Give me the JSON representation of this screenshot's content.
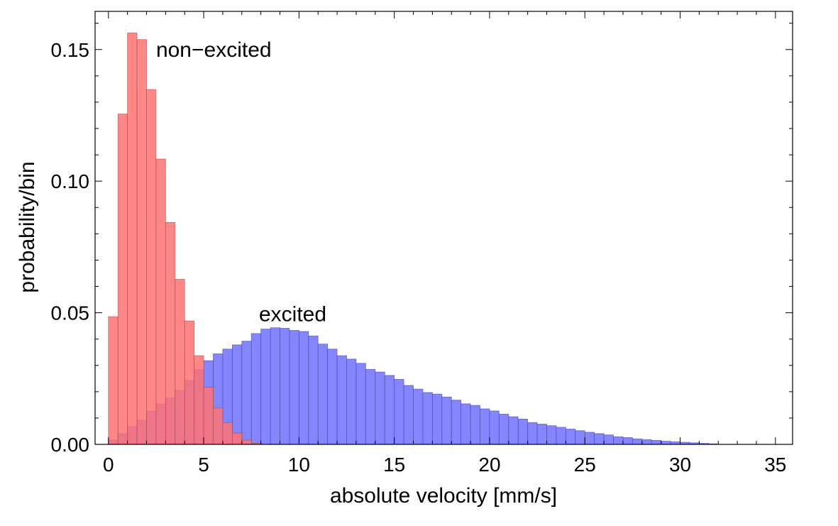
{
  "chart_data": {
    "type": "bar",
    "xlabel": "absolute velocity [mm/s]",
    "ylabel": "probability/bin",
    "xlim": [
      -0.7,
      35.9
    ],
    "ylim": [
      0,
      0.1645
    ],
    "x_ticks": [
      0,
      5,
      10,
      15,
      20,
      25,
      30,
      35
    ],
    "x_tick_labels": [
      "0",
      "5",
      "10",
      "15",
      "20",
      "25",
      "30",
      "35"
    ],
    "y_ticks": [
      0.0,
      0.05,
      0.1,
      0.15
    ],
    "y_tick_labels": [
      "0.00",
      "0.05",
      "0.10",
      "0.15"
    ],
    "bin_width": 0.5,
    "frame_ticks": "all sides, minor ticks",
    "grid": false,
    "series": [
      {
        "name": "excited",
        "color": "#7b7bff",
        "opacity": 0.92,
        "bin_start": 0,
        "values": [
          0.0017,
          0.0041,
          0.0068,
          0.0092,
          0.0126,
          0.0154,
          0.0176,
          0.0205,
          0.0243,
          0.0285,
          0.0318,
          0.0344,
          0.0362,
          0.0378,
          0.0392,
          0.0421,
          0.0438,
          0.0443,
          0.0441,
          0.0433,
          0.0429,
          0.0412,
          0.0381,
          0.0362,
          0.0337,
          0.0324,
          0.0308,
          0.0285,
          0.0275,
          0.0262,
          0.0247,
          0.0224,
          0.021,
          0.0197,
          0.0191,
          0.018,
          0.0168,
          0.0154,
          0.0148,
          0.0135,
          0.0127,
          0.0115,
          0.0105,
          0.0096,
          0.0083,
          0.0077,
          0.0071,
          0.0065,
          0.0058,
          0.0052,
          0.0046,
          0.0041,
          0.0036,
          0.0029,
          0.0026,
          0.0021,
          0.0018,
          0.0015,
          0.0012,
          0.001,
          0.0008,
          0.0006,
          0.0004,
          0.0002
        ]
      },
      {
        "name": "non−excited",
        "color": "#ff7272",
        "opacity": 0.85,
        "bin_start": 0,
        "values": [
          0.0485,
          0.1255,
          0.1563,
          0.1538,
          0.1348,
          0.1084,
          0.0843,
          0.0627,
          0.0469,
          0.0337,
          0.0217,
          0.0138,
          0.0082,
          0.0043,
          0.0016,
          0.0004
        ]
      }
    ],
    "annotations": [
      {
        "text": "non−excited",
        "x": 2.5,
        "y": 0.15
      },
      {
        "text": "excited",
        "x": 7.9,
        "y": 0.0495
      }
    ]
  }
}
